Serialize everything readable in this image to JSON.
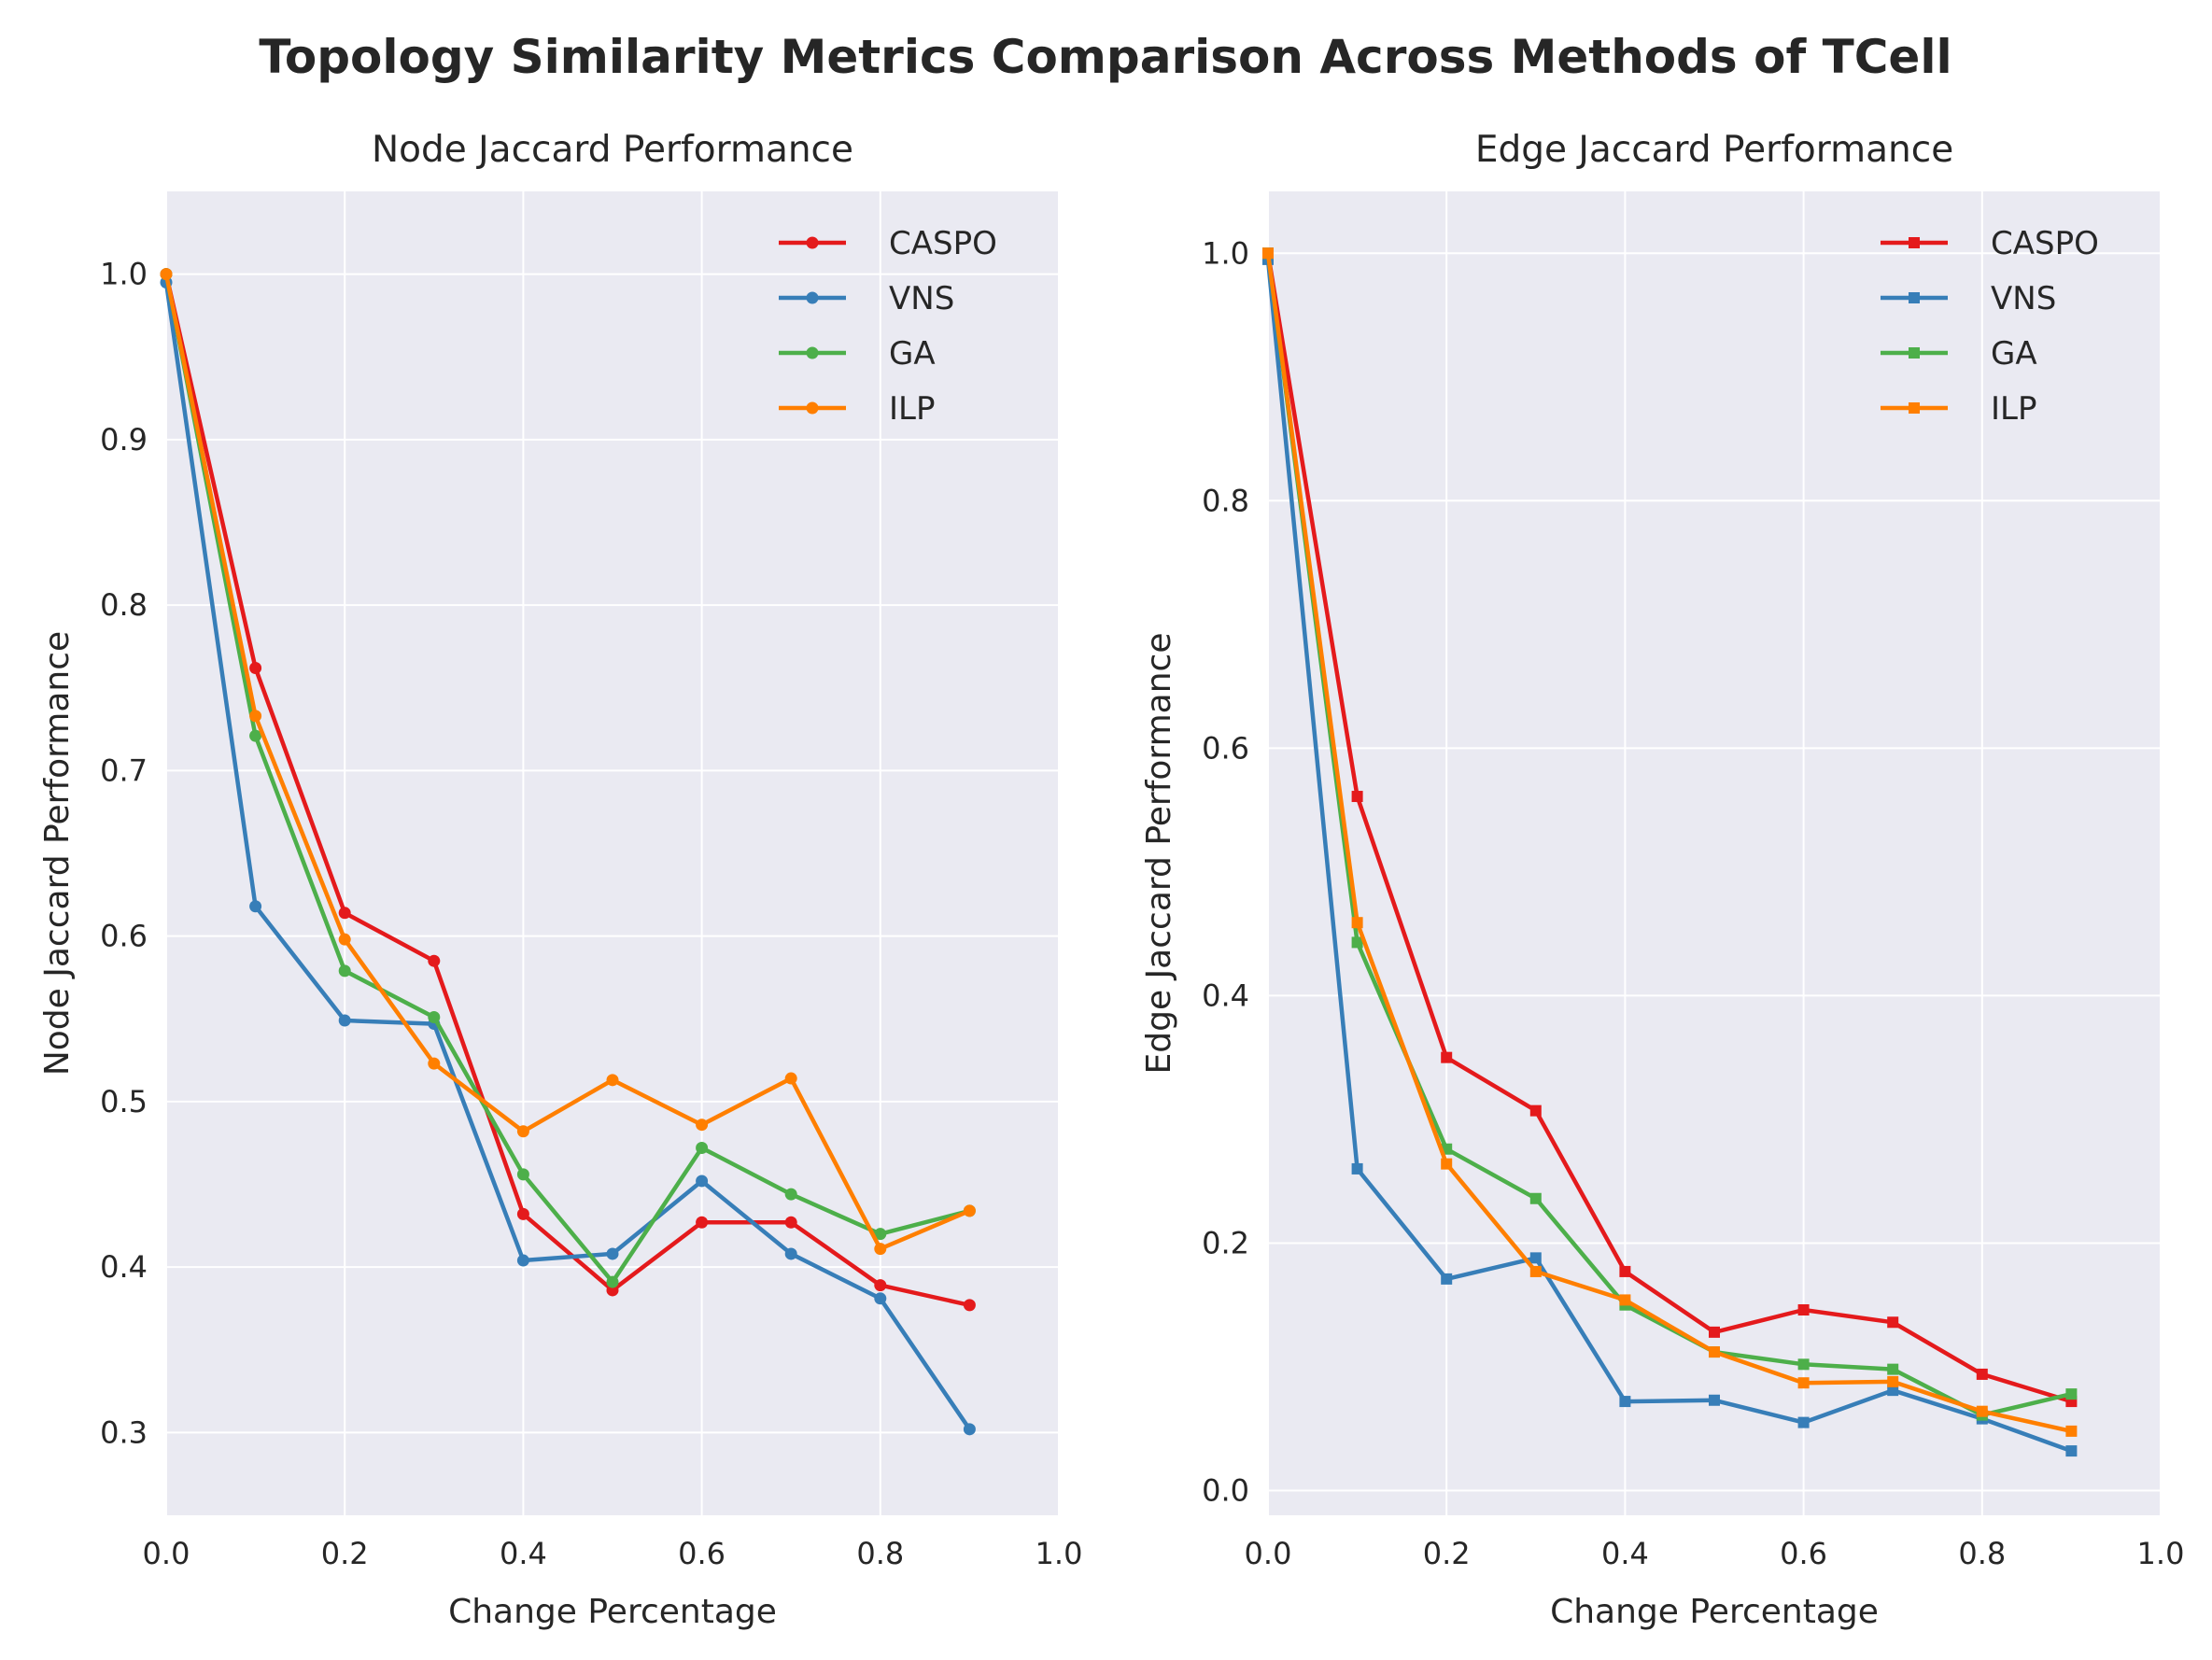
{
  "figure": {
    "title": "Topology Similarity Metrics Comparison Across Methods of TCell"
  },
  "chart_data": [
    {
      "type": "line",
      "title": "Node Jaccard Performance",
      "xlabel": "Change Percentage",
      "ylabel": "Node Jaccard Performance",
      "xlim": [
        0.0,
        1.0
      ],
      "ylim": [
        0.25,
        1.05
      ],
      "xticks": [
        0.0,
        0.2,
        0.4,
        0.6,
        0.8,
        1.0
      ],
      "xtick_labels": [
        "0.0",
        "0.2",
        "0.4",
        "0.6",
        "0.8",
        "1.0"
      ],
      "yticks": [
        0.3,
        0.4,
        0.5,
        0.6,
        0.7,
        0.8,
        0.9,
        1.0
      ],
      "ytick_labels": [
        "0.3",
        "0.4",
        "0.5",
        "0.6",
        "0.7",
        "0.8",
        "0.9",
        "1.0"
      ],
      "grid": true,
      "legend": "top-right",
      "marker": "circle",
      "x": [
        0.0,
        0.1,
        0.2,
        0.3,
        0.4,
        0.5,
        0.6,
        0.7,
        0.8,
        0.9
      ],
      "series": [
        {
          "name": "CASPO",
          "color": "#e41a1c",
          "values": [
            1.0,
            0.762,
            0.614,
            0.585,
            0.432,
            0.386,
            0.427,
            0.427,
            0.389,
            0.377
          ]
        },
        {
          "name": "VNS",
          "color": "#377eb8",
          "values": [
            0.995,
            0.618,
            0.549,
            0.547,
            0.404,
            0.408,
            0.452,
            0.408,
            0.381,
            0.302
          ]
        },
        {
          "name": "GA",
          "color": "#4daf4a",
          "values": [
            1.0,
            0.721,
            0.579,
            0.551,
            0.456,
            0.391,
            0.472,
            0.444,
            0.42,
            0.434
          ]
        },
        {
          "name": "ILP",
          "color": "#ff7f00",
          "values": [
            1.0,
            0.733,
            0.598,
            0.523,
            0.482,
            0.513,
            0.486,
            0.514,
            0.411,
            0.434
          ]
        }
      ]
    },
    {
      "type": "line",
      "title": "Edge Jaccard Performance",
      "xlabel": "Change Percentage",
      "ylabel": "Edge Jaccard Performance",
      "xlim": [
        0.0,
        1.0
      ],
      "ylim": [
        -0.02,
        1.05
      ],
      "xticks": [
        0.0,
        0.2,
        0.4,
        0.6,
        0.8,
        1.0
      ],
      "xtick_labels": [
        "0.0",
        "0.2",
        "0.4",
        "0.6",
        "0.8",
        "1.0"
      ],
      "yticks": [
        0.0,
        0.2,
        0.4,
        0.6,
        0.8,
        1.0
      ],
      "ytick_labels": [
        "0.0",
        "0.2",
        "0.4",
        "0.6",
        "0.8",
        "1.0"
      ],
      "grid": true,
      "legend": "top-right",
      "marker": "square",
      "x": [
        0.0,
        0.1,
        0.2,
        0.3,
        0.4,
        0.5,
        0.6,
        0.7,
        0.8,
        0.9
      ],
      "series": [
        {
          "name": "CASPO",
          "color": "#e41a1c",
          "values": [
            1.0,
            0.561,
            0.35,
            0.307,
            0.177,
            0.128,
            0.146,
            0.136,
            0.094,
            0.072
          ]
        },
        {
          "name": "VNS",
          "color": "#377eb8",
          "values": [
            0.995,
            0.26,
            0.171,
            0.188,
            0.072,
            0.073,
            0.055,
            0.081,
            0.058,
            0.032
          ]
        },
        {
          "name": "GA",
          "color": "#4daf4a",
          "values": [
            1.0,
            0.443,
            0.276,
            0.236,
            0.15,
            0.112,
            0.102,
            0.098,
            0.061,
            0.078
          ]
        },
        {
          "name": "ILP",
          "color": "#ff7f00",
          "values": [
            1.0,
            0.459,
            0.264,
            0.177,
            0.154,
            0.112,
            0.087,
            0.088,
            0.064,
            0.048
          ]
        }
      ]
    }
  ]
}
